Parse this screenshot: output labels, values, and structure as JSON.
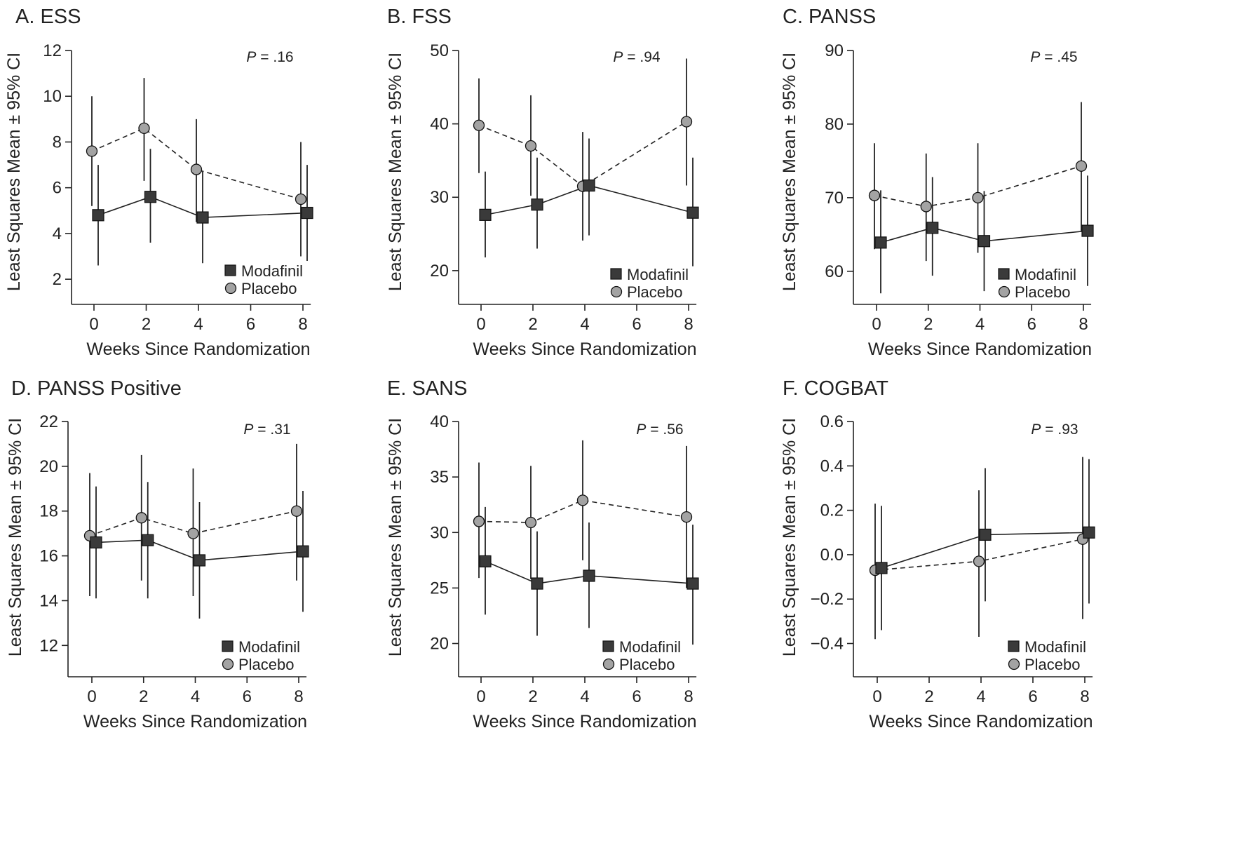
{
  "figure": {
    "panels": [
      {
        "title": "A. ESS",
        "pvalue": {
          "prefix": "P",
          "text": " = .16"
        },
        "ylabel": "Least Squares Mean ± 95% CI",
        "xlabel": "Weeks Since Randomization",
        "legend": [
          "Modafinil",
          "Placebo"
        ]
      },
      {
        "title": "B. FSS",
        "pvalue": {
          "prefix": "P",
          "text": " = .94"
        },
        "ylabel": "Least Squares Mean ± 95% CI",
        "xlabel": "Weeks Since Randomization",
        "legend": [
          "Modafinil",
          "Placebo"
        ]
      },
      {
        "title": "C. PANSS",
        "pvalue": {
          "prefix": "P",
          "text": " = .45"
        },
        "ylabel": "Least Squares Mean ± 95% CI",
        "xlabel": "Weeks Since Randomization",
        "legend": [
          "Modafinil",
          "Placebo"
        ]
      },
      {
        "title": "D. PANSS Positive",
        "pvalue": {
          "prefix": "P",
          "text": " = .31"
        },
        "ylabel": "Least Squares Mean ± 95% CI",
        "xlabel": "Weeks Since Randomization",
        "legend": [
          "Modafinil",
          "Placebo"
        ]
      },
      {
        "title": "E. SANS",
        "pvalue": {
          "prefix": "P",
          "text": " = .56"
        },
        "ylabel": "Least Squares Mean ± 95% CI",
        "xlabel": "Weeks Since Randomization",
        "legend": [
          "Modafinil",
          "Placebo"
        ]
      },
      {
        "title": "F. COGBAT",
        "pvalue": {
          "prefix": "P",
          "text": " = .93"
        },
        "ylabel": "Least Squares Mean ± 95% CI",
        "xlabel": "Weeks Since Randomization",
        "legend": [
          "Modafinil",
          "Placebo"
        ]
      }
    ]
  },
  "colors": {
    "modafinil": "#3a3a3a",
    "placebo": "#a3a3a3",
    "axis": "#222222"
  },
  "chart_data": [
    {
      "type": "line",
      "title": "A. ESS",
      "xlabel": "Weeks Since Randomization",
      "ylabel": "Least Squares Mean ± 95% CI",
      "xticks": [
        0,
        2,
        4,
        6,
        8
      ],
      "yticks": [
        2,
        4,
        6,
        8,
        10,
        12
      ],
      "xlim": [
        -0.9,
        8.3
      ],
      "ylim": [
        0.9,
        12
      ],
      "series": [
        {
          "name": "Modafinil",
          "marker": "square",
          "line": "solid",
          "x": [
            0,
            2,
            4,
            8
          ],
          "y": [
            4.8,
            5.6,
            4.7,
            4.9
          ],
          "lower": [
            2.6,
            3.6,
            2.7,
            2.8
          ],
          "upper": [
            7.0,
            7.7,
            6.7,
            7.0
          ]
        },
        {
          "name": "Placebo",
          "marker": "circle",
          "line": "dashed",
          "x": [
            0,
            2,
            4,
            8
          ],
          "y": [
            7.6,
            8.6,
            6.8,
            5.5
          ],
          "lower": [
            5.2,
            6.3,
            4.5,
            3.0
          ],
          "upper": [
            10.0,
            10.8,
            9.0,
            8.0
          ]
        }
      ]
    },
    {
      "type": "line",
      "title": "B. FSS",
      "xlabel": "Weeks Since Randomization",
      "ylabel": "Least Squares Mean ± 95% CI",
      "xticks": [
        0,
        2,
        4,
        6,
        8
      ],
      "yticks": [
        20,
        30,
        40,
        50
      ],
      "xlim": [
        -0.9,
        8.3
      ],
      "ylim": [
        15.4,
        50
      ],
      "series": [
        {
          "name": "Modafinil",
          "marker": "square",
          "line": "solid",
          "x": [
            0,
            2,
            4,
            8
          ],
          "y": [
            27.6,
            29.0,
            31.6,
            27.9
          ],
          "lower": [
            21.8,
            23.0,
            24.8,
            20.6
          ],
          "upper": [
            33.5,
            35.4,
            38.0,
            35.4
          ]
        },
        {
          "name": "Placebo",
          "marker": "circle",
          "line": "dashed",
          "x": [
            0,
            2,
            4,
            8
          ],
          "y": [
            39.8,
            37.0,
            31.5,
            40.3
          ],
          "lower": [
            33.3,
            30.2,
            24.1,
            31.6
          ],
          "upper": [
            46.2,
            43.9,
            38.9,
            48.9
          ]
        }
      ]
    },
    {
      "type": "line",
      "title": "C. PANSS",
      "xlabel": "Weeks Since Randomization",
      "ylabel": "Least Squares Mean ± 95% CI",
      "xticks": [
        0,
        2,
        4,
        6,
        8
      ],
      "yticks": [
        60,
        70,
        80,
        90
      ],
      "xlim": [
        -0.9,
        8.3
      ],
      "ylim": [
        55.5,
        90
      ],
      "series": [
        {
          "name": "Modafinil",
          "marker": "square",
          "line": "solid",
          "x": [
            0,
            2,
            4,
            8
          ],
          "y": [
            63.9,
            65.9,
            64.1,
            65.5
          ],
          "lower": [
            57.0,
            59.4,
            57.3,
            58.0
          ],
          "upper": [
            71.0,
            72.8,
            70.9,
            73.0
          ]
        },
        {
          "name": "Placebo",
          "marker": "circle",
          "line": "dashed",
          "x": [
            0,
            2,
            4,
            8
          ],
          "y": [
            70.3,
            68.8,
            70.0,
            74.3
          ],
          "lower": [
            63.0,
            61.4,
            62.5,
            65.5
          ],
          "upper": [
            77.4,
            76.0,
            77.4,
            83.0
          ]
        }
      ]
    },
    {
      "type": "line",
      "title": "D. PANSS Positive",
      "xlabel": "Weeks Since Randomization",
      "ylabel": "Least Squares Mean ± 95% CI",
      "xticks": [
        0,
        2,
        4,
        6,
        8
      ],
      "yticks": [
        12,
        14,
        16,
        18,
        20,
        22
      ],
      "xlim": [
        -0.9,
        8.3
      ],
      "ylim": [
        10.6,
        22
      ],
      "series": [
        {
          "name": "Modafinil",
          "marker": "square",
          "line": "solid",
          "x": [
            0,
            2,
            4,
            8
          ],
          "y": [
            16.6,
            16.7,
            15.8,
            16.2
          ],
          "lower": [
            14.1,
            14.1,
            13.2,
            13.5
          ],
          "upper": [
            19.1,
            19.3,
            18.4,
            18.9
          ]
        },
        {
          "name": "Placebo",
          "marker": "circle",
          "line": "dashed",
          "x": [
            0,
            2,
            4,
            8
          ],
          "y": [
            16.9,
            17.7,
            17.0,
            18.0
          ],
          "lower": [
            14.2,
            14.9,
            14.2,
            14.9
          ],
          "upper": [
            19.7,
            20.5,
            19.9,
            21.0
          ]
        }
      ]
    },
    {
      "type": "line",
      "title": "E. SANS",
      "xlabel": "Weeks Since Randomization",
      "ylabel": "Least Squares Mean ± 95% CI",
      "xticks": [
        0,
        2,
        4,
        6,
        8
      ],
      "yticks": [
        20,
        25,
        30,
        35,
        40
      ],
      "xlim": [
        -0.9,
        8.3
      ],
      "ylim": [
        17.0,
        40
      ],
      "series": [
        {
          "name": "Modafinil",
          "marker": "square",
          "line": "solid",
          "x": [
            0,
            2,
            4,
            8
          ],
          "y": [
            27.4,
            25.4,
            26.1,
            25.4
          ],
          "lower": [
            22.6,
            20.7,
            21.4,
            19.9
          ],
          "upper": [
            32.3,
            30.1,
            30.9,
            30.7
          ]
        },
        {
          "name": "Placebo",
          "marker": "circle",
          "line": "dashed",
          "x": [
            0,
            2,
            4,
            8
          ],
          "y": [
            31.0,
            30.9,
            32.9,
            31.4
          ],
          "lower": [
            25.9,
            25.8,
            27.5,
            25.0
          ],
          "upper": [
            36.3,
            36.0,
            38.3,
            37.8
          ]
        }
      ]
    },
    {
      "type": "line",
      "title": "F. COGBAT",
      "xlabel": "Weeks Since Randomization",
      "ylabel": "Least Squares Mean ± 95% CI",
      "xticks": [
        0,
        2,
        4,
        6,
        8
      ],
      "yticks": [
        -0.4,
        -0.2,
        0.0,
        0.2,
        0.4,
        0.6
      ],
      "ytick_labels": [
        "−0.4",
        "−0.2",
        "0.0",
        "0.2",
        "0.4",
        "0.6"
      ],
      "xlim": [
        -0.9,
        8.3
      ],
      "ylim": [
        -0.55,
        0.6
      ],
      "series": [
        {
          "name": "Modafinil",
          "marker": "square",
          "line": "solid",
          "x": [
            0,
            4,
            8
          ],
          "y": [
            -0.06,
            0.09,
            0.1
          ],
          "lower": [
            -0.34,
            -0.21,
            -0.22
          ],
          "upper": [
            0.22,
            0.39,
            0.43
          ]
        },
        {
          "name": "Placebo",
          "marker": "circle",
          "line": "dashed",
          "x": [
            0,
            4,
            8
          ],
          "y": [
            -0.07,
            -0.03,
            0.07
          ],
          "lower": [
            -0.38,
            -0.37,
            -0.29
          ],
          "upper": [
            0.23,
            0.29,
            0.44
          ]
        }
      ]
    }
  ]
}
